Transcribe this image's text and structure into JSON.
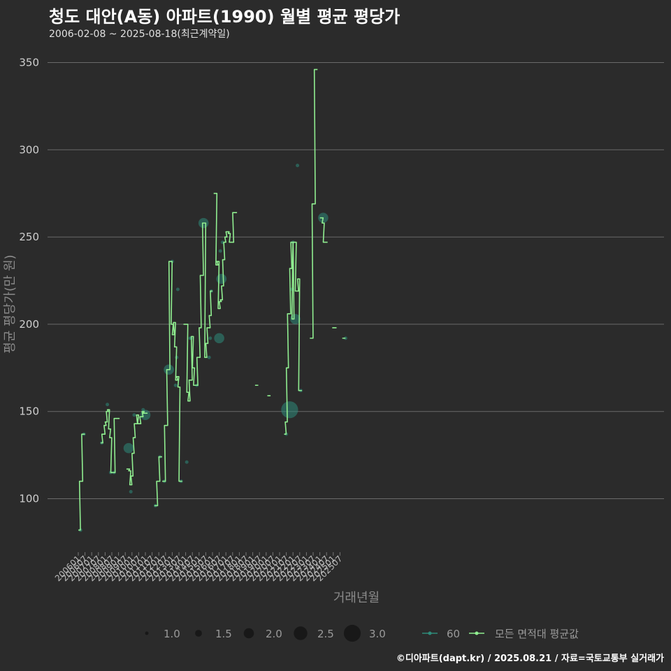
{
  "header": {
    "title": "청도 대안(A동) 아파트(1990) 월별 평균 평당가",
    "subtitle": "2006-02-08 ~ 2025-08-18(최근계약일)"
  },
  "footer": {
    "credit": "©디아파트(dapt.kr) / 2025.08.21 / 자료=국토교통부 실거래가"
  },
  "colors": {
    "background": "#2b2b2b",
    "grid": "#6a6a6a",
    "line": "#90ee90",
    "point": "#2e8b7a"
  },
  "chart_data": {
    "type": "line",
    "title": "청도 대안(A동) 아파트(1990) 월별 평균 평당가",
    "xlabel": "거래년월",
    "ylabel": "평균 평당가(만 원)",
    "ylim": [
      68,
      358
    ],
    "yticks": [
      100,
      150,
      200,
      250,
      300,
      350
    ],
    "xticks": [
      "200601",
      "200607",
      "200701",
      "200707",
      "200801",
      "200807",
      "200901",
      "200907",
      "201001",
      "201007",
      "201101",
      "201107",
      "201201",
      "201207",
      "201301",
      "201307",
      "201401",
      "201407",
      "201501",
      "201507",
      "201601",
      "201607",
      "201701",
      "201707",
      "201801",
      "201807",
      "201901",
      "201907",
      "202001",
      "202007",
      "202101",
      "202107",
      "202201",
      "202207",
      "202301",
      "202307",
      "202401",
      "202407",
      "202501",
      "202507"
    ],
    "series": [
      {
        "name": "모든 면적대 평균값",
        "segments": [
          [
            [
              200602,
              82
            ],
            [
              200603,
              110
            ],
            [
              200604,
              110
            ],
            [
              200605,
              137
            ],
            [
              200606,
              137
            ]
          ],
          [
            [
              200710,
              132
            ],
            [
              200711,
              137
            ],
            [
              200712,
              137
            ],
            [
              200801,
              142
            ],
            [
              200802,
              144
            ],
            [
              200803,
              150
            ],
            [
              200804,
              151
            ],
            [
              200805,
              140
            ],
            [
              200806,
              135
            ],
            [
              200807,
              115
            ],
            [
              200808,
              115
            ],
            [
              200809,
              115
            ],
            [
              200810,
              146
            ],
            [
              200811,
              146
            ],
            [
              200812,
              146
            ],
            [
              200901,
              146
            ]
          ],
          [
            [
              200909,
              117
            ],
            [
              200910,
              117
            ],
            [
              200911,
              116
            ],
            [
              200912,
              108
            ],
            [
              201001,
              113
            ],
            [
              201002,
              126
            ],
            [
              201003,
              135
            ],
            [
              201004,
              143
            ],
            [
              201005,
              143
            ],
            [
              201006,
              148
            ],
            [
              201007,
              143
            ],
            [
              201008,
              143
            ],
            [
              201009,
              147
            ],
            [
              201010,
              147
            ],
            [
              201011,
              150
            ],
            [
              201012,
              149
            ],
            [
              201101,
              149
            ],
            [
              201102,
              149
            ]
          ],
          [
            [
              201110,
              96
            ],
            [
              201111,
              96
            ],
            [
              201112,
              110
            ],
            [
              201201,
              110
            ],
            [
              201202,
              124
            ],
            [
              201203,
              124
            ]
          ],
          [
            [
              201205,
              110
            ],
            [
              201206,
              110
            ],
            [
              201207,
              142
            ],
            [
              201208,
              142
            ],
            [
              201209,
              174
            ],
            [
              201210,
              174
            ],
            [
              201211,
              236
            ],
            [
              201212,
              236
            ],
            [
              201301,
              200
            ],
            [
              201302,
              194
            ],
            [
              201303,
              201
            ],
            [
              201304,
              187
            ],
            [
              201305,
              168
            ],
            [
              201306,
              170
            ],
            [
              201307,
              164
            ],
            [
              201308,
              110
            ],
            [
              201309,
              110
            ]
          ],
          [
            [
              201312,
              200
            ],
            [
              201401,
              200
            ],
            [
              201402,
              200
            ],
            [
              201403,
              161
            ],
            [
              201404,
              156
            ],
            [
              201405,
              168
            ],
            [
              201406,
              168
            ],
            [
              201407,
              193
            ],
            [
              201408,
              175
            ],
            [
              201409,
              165
            ],
            [
              201410,
              165
            ],
            [
              201411,
              165
            ],
            [
              201412,
              181
            ],
            [
              201501,
              181
            ],
            [
              201502,
              198
            ],
            [
              201503,
              228
            ],
            [
              201504,
              228
            ],
            [
              201505,
              258
            ],
            [
              201506,
              258
            ],
            [
              201507,
              181
            ],
            [
              201508,
              189
            ],
            [
              201509,
              198
            ],
            [
              201510,
              198
            ],
            [
              201511,
              205
            ],
            [
              201512,
              219
            ]
          ],
          [
            [
              201603,
              275
            ],
            [
              201604,
              275
            ],
            [
              201605,
              234
            ],
            [
              201606,
              236
            ],
            [
              201607,
              209
            ],
            [
              201608,
              213
            ],
            [
              201609,
              214
            ],
            [
              201610,
              222
            ],
            [
              201611,
              237
            ],
            [
              201612,
              247
            ],
            [
              201701,
              250
            ],
            [
              201702,
              253
            ],
            [
              201703,
              253
            ],
            [
              201704,
              252
            ],
            [
              201705,
              247
            ],
            [
              201706,
              247
            ],
            [
              201707,
              247
            ],
            [
              201708,
              264
            ],
            [
              201709,
              264
            ],
            [
              201710,
              264
            ]
          ],
          [
            [
              201904,
              165
            ],
            [
              201905,
              165
            ]
          ],
          [
            [
              202003,
              159
            ],
            [
              202004,
              159
            ]
          ],
          [
            [
              202106,
              137
            ],
            [
              202107,
              144
            ],
            [
              202108,
              175
            ],
            [
              202109,
              206
            ],
            [
              202110,
              206
            ],
            [
              202111,
              232
            ],
            [
              202112,
              247
            ],
            [
              202201,
              203
            ],
            [
              202202,
              247
            ],
            [
              202203,
              247
            ],
            [
              202204,
              219
            ],
            [
              202205,
              219
            ],
            [
              202206,
              226
            ],
            [
              202207,
              162
            ],
            [
              202208,
              162
            ]
          ],
          [
            [
              202305,
              192
            ],
            [
              202306,
              192
            ],
            [
              202307,
              269
            ],
            [
              202308,
              269
            ],
            [
              202309,
              346
            ],
            [
              202310,
              346
            ]
          ],
          [
            [
              202402,
              261
            ],
            [
              202403,
              261
            ],
            [
              202404,
              258
            ],
            [
              202405,
              247
            ],
            [
              202406,
              247
            ],
            [
              202407,
              247
            ]
          ],
          [
            [
              202501,
              198
            ],
            [
              202502,
              198
            ],
            [
              202503,
              198
            ]
          ],
          [
            [
              202510,
              192
            ],
            [
              202511,
              192
            ]
          ]
        ]
      },
      {
        "name": "60",
        "points": [
          [
            200603,
            82,
            1
          ],
          [
            200606,
            137,
            1
          ],
          [
            200710,
            132,
            1
          ],
          [
            200803,
            154,
            1
          ],
          [
            200806,
            115,
            1
          ],
          [
            200809,
            115,
            1
          ],
          [
            200910,
            129,
            2
          ],
          [
            200912,
            104,
            1
          ],
          [
            201003,
            148,
            1
          ],
          [
            201011,
            151,
            1
          ],
          [
            201101,
            148,
            2
          ],
          [
            201110,
            96,
            1
          ],
          [
            201202,
            124,
            1
          ],
          [
            201206,
            110,
            1
          ],
          [
            201210,
            174,
            2
          ],
          [
            201301,
            236,
            1
          ],
          [
            201304,
            165,
            1
          ],
          [
            201305,
            181,
            1
          ],
          [
            201306,
            220,
            1
          ],
          [
            201309,
            110,
            1
          ],
          [
            201402,
            121,
            1
          ],
          [
            201405,
            192,
            1
          ],
          [
            201406,
            192,
            1
          ],
          [
            201411,
            165,
            1
          ],
          [
            201505,
            258,
            2
          ],
          [
            201510,
            181,
            1
          ],
          [
            201511,
            192,
            1
          ],
          [
            201512,
            219,
            1
          ],
          [
            201607,
            192,
            2
          ],
          [
            201608,
            242,
            1
          ],
          [
            201609,
            226,
            2
          ],
          [
            201610,
            247,
            1
          ],
          [
            202107,
            137,
            1
          ],
          [
            202110,
            151,
            3
          ],
          [
            202112,
            220,
            1
          ],
          [
            202201,
            247,
            1
          ],
          [
            202203,
            203,
            2
          ],
          [
            202205,
            291,
            1
          ],
          [
            202208,
            162,
            1
          ],
          [
            202404,
            261,
            2
          ],
          [
            202512,
            192,
            1
          ]
        ]
      }
    ],
    "size_legend": [
      "1.0",
      "1.5",
      "2.0",
      "2.5",
      "3.0"
    ],
    "legend": [
      "60",
      "모든 면적대 평균값"
    ]
  }
}
